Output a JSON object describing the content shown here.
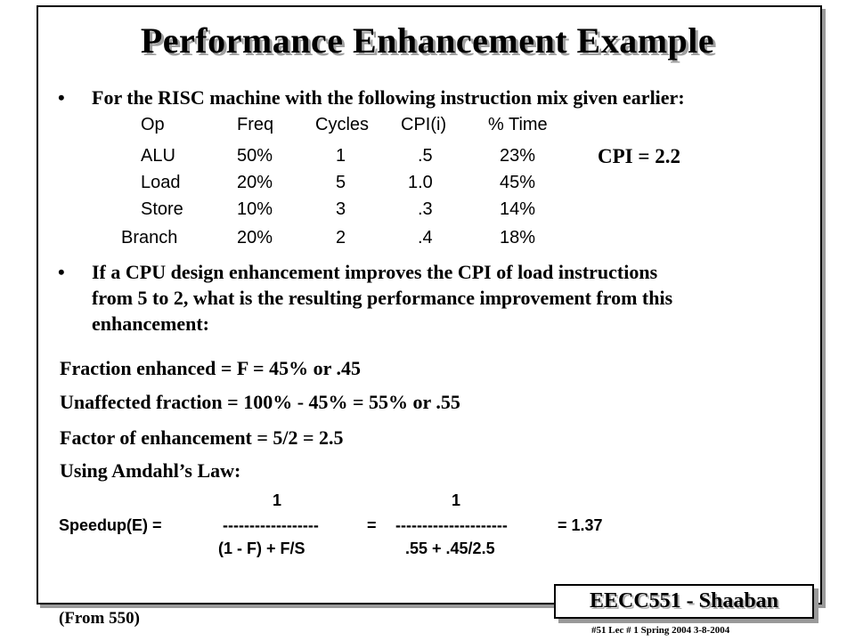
{
  "slide": {
    "title": "Performance Enhancement Example",
    "bullet1": "For the RISC machine with the following instruction mix given earlier:",
    "table": {
      "headers": [
        "Op",
        "Freq",
        "Cycles",
        "CPI(i)",
        "% Time"
      ],
      "rows": [
        [
          "ALU",
          "50%",
          "1",
          ".5",
          "23%"
        ],
        [
          "Load",
          "20%",
          "5",
          "1.0",
          "45%"
        ],
        [
          "Store",
          "10%",
          "3",
          ".3",
          "14%"
        ],
        [
          "Branch",
          "20%",
          "2",
          ".4",
          "18%"
        ]
      ]
    },
    "cpi_note": "CPI = 2.2",
    "bullet2_lines": [
      "If a CPU design enhancement improves the CPI of load instructions",
      "from 5 to 2,  what is the resulting performance improvement from this",
      "enhancement:"
    ],
    "equations": [
      "Fraction enhanced =  F =  45%  or  .45",
      "Unaffected fraction = 100% - 45% =  55%   or  .55",
      "Factor of enhancement =  5/2 =  2.5",
      "Using Amdahl’s Law:"
    ],
    "speedup": {
      "numerator1": "1",
      "numerator2": "1",
      "label": "Speedup(E)  =",
      "dash1": "------------------",
      "equals": "=",
      "dash2": "---------------------",
      "result": "=    1.37",
      "denominator1": "(1 - F)  +  F/S",
      "denominator2": ".55  +  .45/2.5"
    },
    "footer": {
      "course": "EECC551  - Shaaban",
      "source": "(From 550)",
      "lecture": "#51   Lec # 1 Spring 2004   3-8-2004"
    }
  }
}
